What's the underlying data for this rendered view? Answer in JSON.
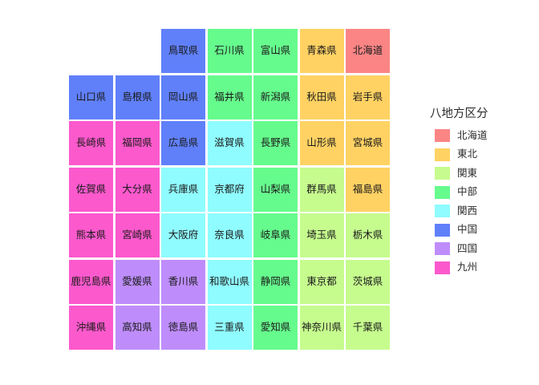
{
  "legend": {
    "title": "八地方区分",
    "entries": [
      {
        "label": "北海道",
        "color": "#FB8585"
      },
      {
        "label": "東北",
        "color": "#FFD263"
      },
      {
        "label": "関東",
        "color": "#C6FB8E"
      },
      {
        "label": "中部",
        "color": "#66FB8D"
      },
      {
        "label": "関西",
        "color": "#8FFCFF"
      },
      {
        "label": "中国",
        "color": "#6080FA"
      },
      {
        "label": "四国",
        "color": "#BE8DFB"
      },
      {
        "label": "九州",
        "color": "#FC59CD"
      }
    ]
  },
  "chart_data": {
    "type": "heatmap",
    "subtype": "tile-grid-map-of-japan-prefectures",
    "title": "",
    "legend_title": "八地方区分",
    "legend_position": "right",
    "grid": {
      "rows": 7,
      "cols": 7
    },
    "region_colors": {
      "北海道": "#FB8585",
      "東北": "#FFD263",
      "関東": "#C6FB8E",
      "中部": "#66FB8D",
      "関西": "#8FFCFF",
      "中国": "#6080FA",
      "四国": "#BE8DFB",
      "九州": "#FC59CD"
    },
    "cells": [
      {
        "row": 1,
        "col": 3,
        "name": "鳥取県",
        "region": "中国"
      },
      {
        "row": 1,
        "col": 4,
        "name": "石川県",
        "region": "中部"
      },
      {
        "row": 1,
        "col": 5,
        "name": "富山県",
        "region": "中部"
      },
      {
        "row": 1,
        "col": 6,
        "name": "青森県",
        "region": "東北"
      },
      {
        "row": 1,
        "col": 7,
        "name": "北海道",
        "region": "北海道"
      },
      {
        "row": 2,
        "col": 1,
        "name": "山口県",
        "region": "中国"
      },
      {
        "row": 2,
        "col": 2,
        "name": "島根県",
        "region": "中国"
      },
      {
        "row": 2,
        "col": 3,
        "name": "岡山県",
        "region": "中国"
      },
      {
        "row": 2,
        "col": 4,
        "name": "福井県",
        "region": "中部"
      },
      {
        "row": 2,
        "col": 5,
        "name": "新潟県",
        "region": "中部"
      },
      {
        "row": 2,
        "col": 6,
        "name": "秋田県",
        "region": "東北"
      },
      {
        "row": 2,
        "col": 7,
        "name": "岩手県",
        "region": "東北"
      },
      {
        "row": 3,
        "col": 1,
        "name": "長崎県",
        "region": "九州"
      },
      {
        "row": 3,
        "col": 2,
        "name": "福岡県",
        "region": "九州"
      },
      {
        "row": 3,
        "col": 3,
        "name": "広島県",
        "region": "中国"
      },
      {
        "row": 3,
        "col": 4,
        "name": "滋賀県",
        "region": "関西"
      },
      {
        "row": 3,
        "col": 5,
        "name": "長野県",
        "region": "中部"
      },
      {
        "row": 3,
        "col": 6,
        "name": "山形県",
        "region": "東北"
      },
      {
        "row": 3,
        "col": 7,
        "name": "宮城県",
        "region": "東北"
      },
      {
        "row": 4,
        "col": 1,
        "name": "佐賀県",
        "region": "九州"
      },
      {
        "row": 4,
        "col": 2,
        "name": "大分県",
        "region": "九州"
      },
      {
        "row": 4,
        "col": 3,
        "name": "兵庫県",
        "region": "関西"
      },
      {
        "row": 4,
        "col": 4,
        "name": "京都府",
        "region": "関西"
      },
      {
        "row": 4,
        "col": 5,
        "name": "山梨県",
        "region": "中部"
      },
      {
        "row": 4,
        "col": 6,
        "name": "群馬県",
        "region": "関東"
      },
      {
        "row": 4,
        "col": 7,
        "name": "福島県",
        "region": "東北"
      },
      {
        "row": 5,
        "col": 1,
        "name": "熊本県",
        "region": "九州"
      },
      {
        "row": 5,
        "col": 2,
        "name": "宮崎県",
        "region": "九州"
      },
      {
        "row": 5,
        "col": 3,
        "name": "大阪府",
        "region": "関西"
      },
      {
        "row": 5,
        "col": 4,
        "name": "奈良県",
        "region": "関西"
      },
      {
        "row": 5,
        "col": 5,
        "name": "岐阜県",
        "region": "中部"
      },
      {
        "row": 5,
        "col": 6,
        "name": "埼玉県",
        "region": "関東"
      },
      {
        "row": 5,
        "col": 7,
        "name": "栃木県",
        "region": "関東"
      },
      {
        "row": 6,
        "col": 1,
        "name": "鹿児島県",
        "region": "九州"
      },
      {
        "row": 6,
        "col": 2,
        "name": "愛媛県",
        "region": "四国"
      },
      {
        "row": 6,
        "col": 3,
        "name": "香川県",
        "region": "四国"
      },
      {
        "row": 6,
        "col": 4,
        "name": "和歌山県",
        "region": "関西"
      },
      {
        "row": 6,
        "col": 5,
        "name": "静岡県",
        "region": "中部"
      },
      {
        "row": 6,
        "col": 6,
        "name": "東京都",
        "region": "関東"
      },
      {
        "row": 6,
        "col": 7,
        "name": "茨城県",
        "region": "関東"
      },
      {
        "row": 7,
        "col": 1,
        "name": "沖縄県",
        "region": "九州"
      },
      {
        "row": 7,
        "col": 2,
        "name": "高知県",
        "region": "四国"
      },
      {
        "row": 7,
        "col": 3,
        "name": "徳島県",
        "region": "四国"
      },
      {
        "row": 7,
        "col": 4,
        "name": "三重県",
        "region": "関西"
      },
      {
        "row": 7,
        "col": 5,
        "name": "愛知県",
        "region": "中部"
      },
      {
        "row": 7,
        "col": 6,
        "name": "神奈川県",
        "region": "関東"
      },
      {
        "row": 7,
        "col": 7,
        "name": "千葉県",
        "region": "関東"
      }
    ]
  }
}
